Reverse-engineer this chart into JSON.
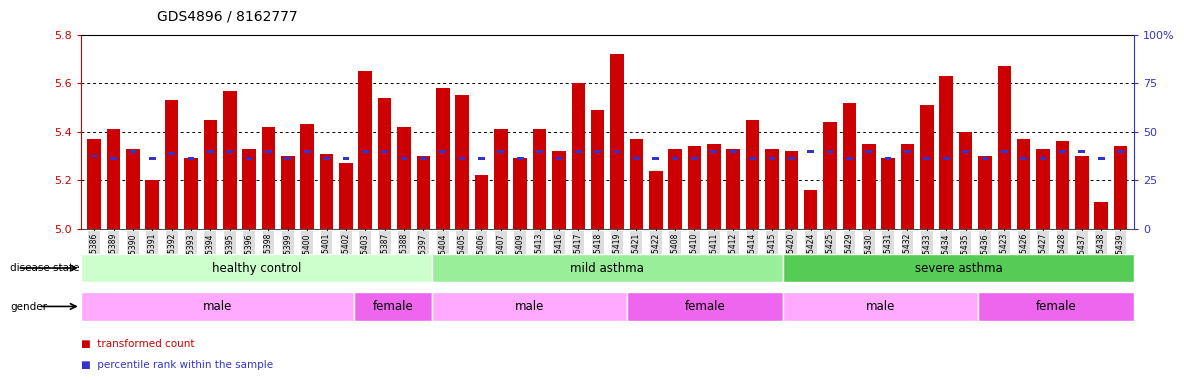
{
  "title": "GDS4896 / 8162777",
  "samples": [
    "GSM665386",
    "GSM665389",
    "GSM665390",
    "GSM665391",
    "GSM665392",
    "GSM665393",
    "GSM665394",
    "GSM665395",
    "GSM665396",
    "GSM665398",
    "GSM665399",
    "GSM665400",
    "GSM665401",
    "GSM665402",
    "GSM665403",
    "GSM665387",
    "GSM665388",
    "GSM665397",
    "GSM665404",
    "GSM665405",
    "GSM665406",
    "GSM665407",
    "GSM665409",
    "GSM665413",
    "GSM665416",
    "GSM665417",
    "GSM665418",
    "GSM665419",
    "GSM665421",
    "GSM665422",
    "GSM665408",
    "GSM665410",
    "GSM665411",
    "GSM665412",
    "GSM665414",
    "GSM665415",
    "GSM665420",
    "GSM665424",
    "GSM665425",
    "GSM665429",
    "GSM665430",
    "GSM665431",
    "GSM665432",
    "GSM665433",
    "GSM665434",
    "GSM665435",
    "GSM665436",
    "GSM665423",
    "GSM665426",
    "GSM665427",
    "GSM665428",
    "GSM665437",
    "GSM665438",
    "GSM665439"
  ],
  "bar_heights": [
    5.37,
    5.41,
    5.33,
    5.2,
    5.53,
    5.29,
    5.45,
    5.57,
    5.33,
    5.42,
    5.3,
    5.43,
    5.31,
    5.27,
    5.65,
    5.54,
    5.42,
    5.3,
    5.58,
    5.55,
    5.22,
    5.41,
    5.29,
    5.41,
    5.32,
    5.6,
    5.49,
    5.72,
    5.37,
    5.24,
    5.33,
    5.34,
    5.35,
    5.33,
    5.45,
    5.33,
    5.32,
    5.16,
    5.44,
    5.52,
    5.35,
    5.29,
    5.35,
    5.51,
    5.63,
    5.4,
    5.3,
    5.67,
    5.37,
    5.33,
    5.36,
    5.3,
    5.11,
    5.34
  ],
  "percentile_heights": [
    5.3,
    5.29,
    5.32,
    5.29,
    5.31,
    5.29,
    5.32,
    5.32,
    5.29,
    5.32,
    5.29,
    5.32,
    5.29,
    5.29,
    5.32,
    5.32,
    5.29,
    5.29,
    5.32,
    5.29,
    5.29,
    5.32,
    5.29,
    5.32,
    5.29,
    5.32,
    5.32,
    5.32,
    5.29,
    5.29,
    5.29,
    5.29,
    5.32,
    5.32,
    5.29,
    5.29,
    5.29,
    5.32,
    5.32,
    5.29,
    5.32,
    5.29,
    5.32,
    5.29,
    5.29,
    5.32,
    5.29,
    5.32,
    5.29,
    5.29,
    5.32,
    5.32,
    5.29,
    5.32
  ],
  "ylim_left": [
    5.0,
    5.8
  ],
  "ylim_right": [
    0,
    100
  ],
  "yticks_left": [
    5.0,
    5.2,
    5.4,
    5.6,
    5.8
  ],
  "yticks_right": [
    0,
    25,
    50,
    75,
    100
  ],
  "bar_color": "#CC0000",
  "blue_color": "#3333CC",
  "disease_state_groups": [
    {
      "label": "healthy control",
      "start": 0,
      "end": 18,
      "color": "#CCFFCC"
    },
    {
      "label": "mild asthma",
      "start": 18,
      "end": 36,
      "color": "#99EE99"
    },
    {
      "label": "severe asthma",
      "start": 36,
      "end": 54,
      "color": "#55CC55"
    }
  ],
  "gender_groups": [
    {
      "label": "male",
      "start": 0,
      "end": 14,
      "color": "#FFAAFF"
    },
    {
      "label": "female",
      "start": 14,
      "end": 18,
      "color": "#EE66EE"
    },
    {
      "label": "male",
      "start": 18,
      "end": 28,
      "color": "#FFAAFF"
    },
    {
      "label": "female",
      "start": 28,
      "end": 36,
      "color": "#EE66EE"
    },
    {
      "label": "male",
      "start": 36,
      "end": 46,
      "color": "#FFAAFF"
    },
    {
      "label": "female",
      "start": 46,
      "end": 54,
      "color": "#EE66EE"
    }
  ]
}
